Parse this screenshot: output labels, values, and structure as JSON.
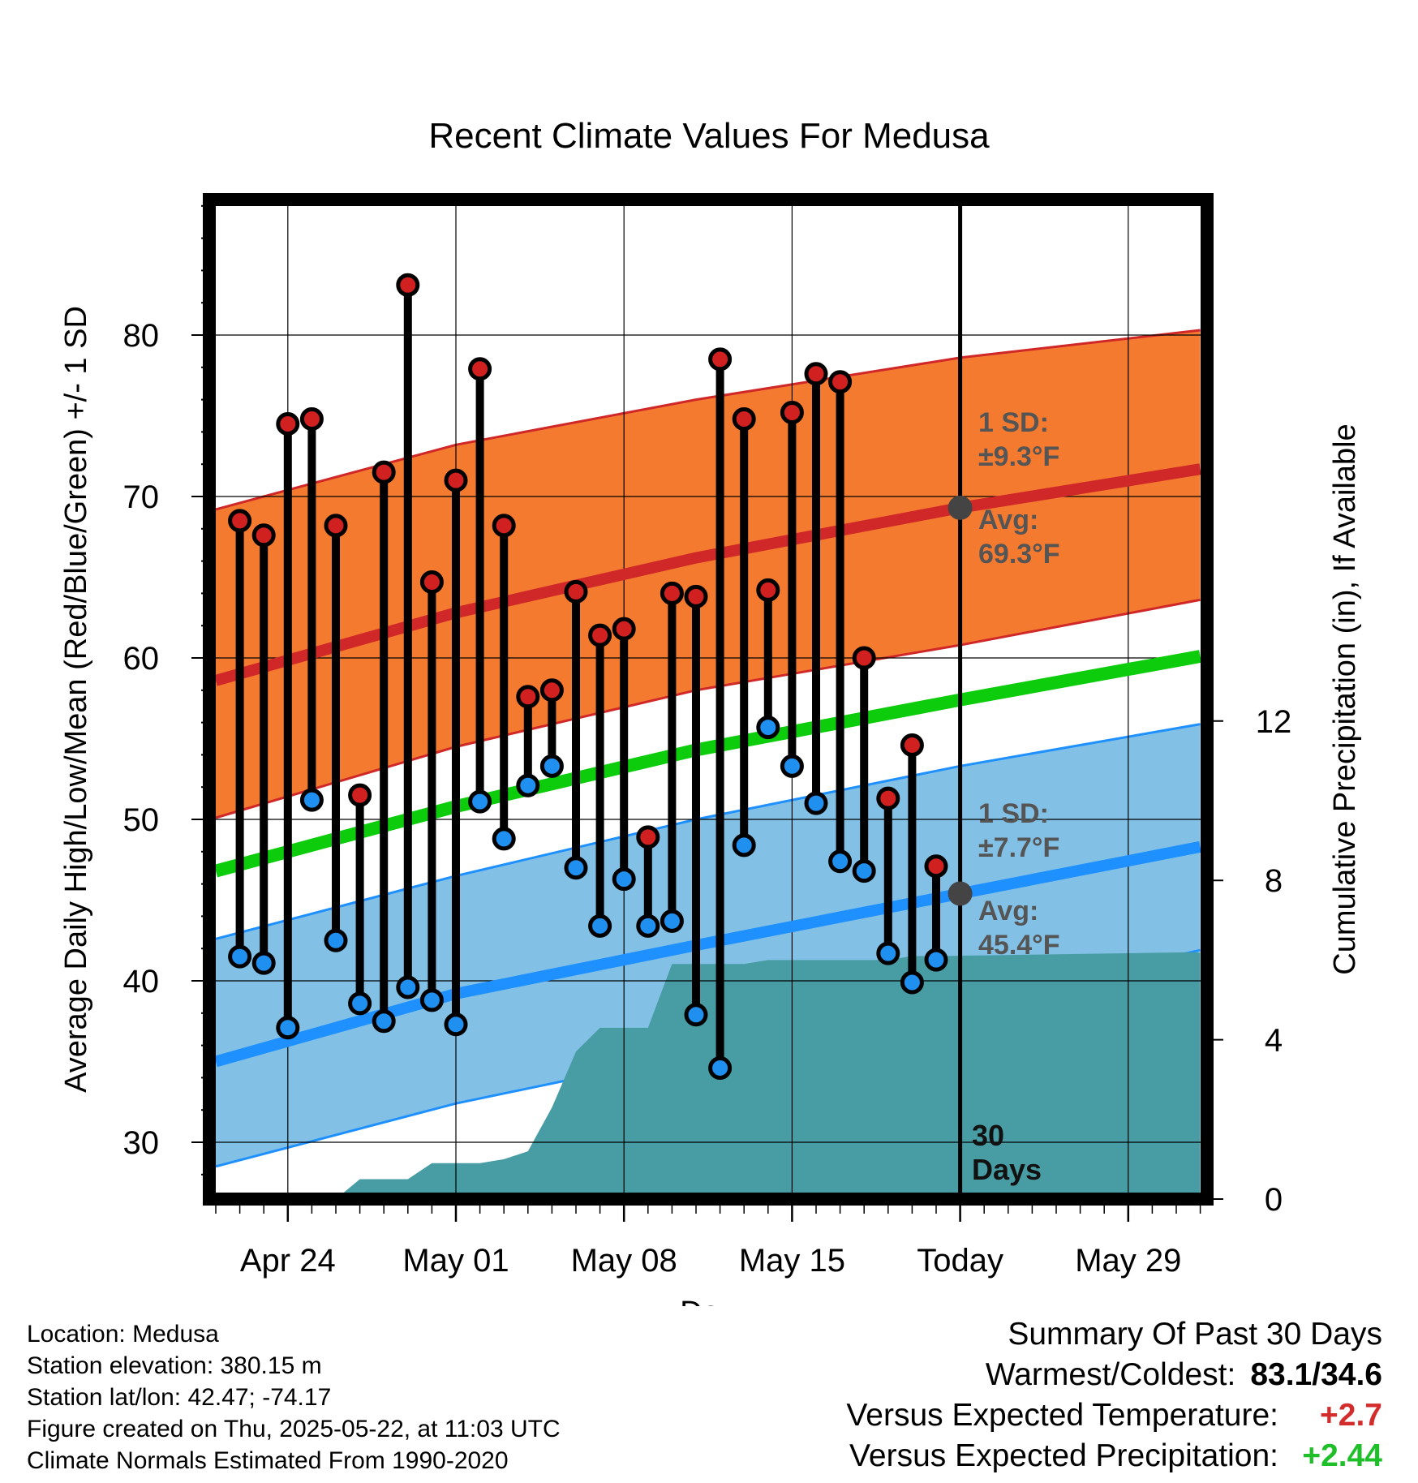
{
  "chart_data": {
    "type": "line",
    "title": "Recent Climate Values For Medusa",
    "xlabel": "Day",
    "ylabel": "Average Daily High/Low/Mean (Red/Blue/Green) +/- 1 SD",
    "y2label": "Cumulative Precipitation (in), If Available",
    "x_range": [
      "2025-04-21",
      "2025-06-01"
    ],
    "ylim": [
      27,
      89
    ],
    "y2lim": [
      0,
      24
    ],
    "x_ticks": [
      {
        "date": "2025-04-24",
        "label": "Apr 24"
      },
      {
        "date": "2025-05-01",
        "label": "May 01"
      },
      {
        "date": "2025-05-08",
        "label": "May 08"
      },
      {
        "date": "2025-05-15",
        "label": "May 15"
      },
      {
        "date": "2025-05-22",
        "label": "Today"
      },
      {
        "date": "2025-05-29",
        "label": "May 29"
      }
    ],
    "y_ticks": [
      30,
      40,
      50,
      60,
      70,
      80
    ],
    "y2_ticks": [
      0,
      4,
      8,
      12
    ],
    "today": "2025-05-22",
    "today_label_1": "30",
    "today_label_2": "Days",
    "daily": [
      {
        "date": "2025-04-22",
        "high": 68.5,
        "low": 41.5
      },
      {
        "date": "2025-04-23",
        "high": 67.6,
        "low": 41.1
      },
      {
        "date": "2025-04-24",
        "high": 74.5,
        "low": 37.1
      },
      {
        "date": "2025-04-25",
        "high": 74.8,
        "low": 51.2
      },
      {
        "date": "2025-04-26",
        "high": 68.2,
        "low": 42.5
      },
      {
        "date": "2025-04-27",
        "high": 51.5,
        "low": 38.6
      },
      {
        "date": "2025-04-28",
        "high": 71.5,
        "low": 37.5
      },
      {
        "date": "2025-04-29",
        "high": 83.1,
        "low": 39.6
      },
      {
        "date": "2025-04-30",
        "high": 64.7,
        "low": 38.8
      },
      {
        "date": "2025-05-01",
        "high": 71.0,
        "low": 37.3
      },
      {
        "date": "2025-05-02",
        "high": 77.9,
        "low": 51.1
      },
      {
        "date": "2025-05-03",
        "high": 68.2,
        "low": 48.8
      },
      {
        "date": "2025-05-04",
        "high": 57.6,
        "low": 52.1
      },
      {
        "date": "2025-05-05",
        "high": 58.0,
        "low": 53.3
      },
      {
        "date": "2025-05-06",
        "high": 64.1,
        "low": 47.0
      },
      {
        "date": "2025-05-07",
        "high": 61.4,
        "low": 43.4
      },
      {
        "date": "2025-05-08",
        "high": 61.8,
        "low": 46.3
      },
      {
        "date": "2025-05-09",
        "high": 48.9,
        "low": 43.4
      },
      {
        "date": "2025-05-10",
        "high": 64.0,
        "low": 43.7
      },
      {
        "date": "2025-05-11",
        "high": 63.8,
        "low": 37.9
      },
      {
        "date": "2025-05-12",
        "high": 78.5,
        "low": 34.6
      },
      {
        "date": "2025-05-13",
        "high": 74.8,
        "low": 48.4
      },
      {
        "date": "2025-05-14",
        "high": 64.2,
        "low": 55.7
      },
      {
        "date": "2025-05-15",
        "high": 75.2,
        "low": 53.3
      },
      {
        "date": "2025-05-16",
        "high": 77.6,
        "low": 51.0
      },
      {
        "date": "2025-05-17",
        "high": 77.1,
        "low": 47.4
      },
      {
        "date": "2025-05-18",
        "high": 60.0,
        "low": 46.8
      },
      {
        "date": "2025-05-19",
        "high": 51.3,
        "low": 41.7
      },
      {
        "date": "2025-05-20",
        "high": 54.6,
        "low": 39.9
      },
      {
        "date": "2025-05-21",
        "high": 47.1,
        "low": 41.3
      }
    ],
    "normal_high": {
      "dates": [
        "2025-04-21",
        "2025-05-01",
        "2025-05-11",
        "2025-05-22",
        "2025-06-01"
      ],
      "avg": [
        58.6,
        62.8,
        66.2,
        69.3,
        71.7
      ],
      "upper": [
        69.2,
        73.2,
        76.0,
        78.6,
        80.3
      ],
      "lower": [
        50.1,
        54.5,
        58.0,
        60.8,
        63.6
      ]
    },
    "normal_mean": {
      "dates": [
        "2025-04-21",
        "2025-05-01",
        "2025-05-11",
        "2025-05-22",
        "2025-06-01"
      ],
      "avg": [
        46.8,
        50.8,
        54.3,
        57.4,
        60.1
      ]
    },
    "normal_low": {
      "dates": [
        "2025-04-21",
        "2025-05-01",
        "2025-05-11",
        "2025-05-22",
        "2025-06-01"
      ],
      "avg": [
        35.0,
        39.2,
        42.2,
        45.4,
        48.3
      ],
      "upper": [
        42.6,
        46.5,
        50.0,
        53.3,
        55.9
      ],
      "lower": [
        28.5,
        32.4,
        35.5,
        38.6,
        41.9
      ]
    },
    "precip_cumulative": {
      "dates": [
        "2025-04-21",
        "2025-04-26",
        "2025-04-27",
        "2025-04-28",
        "2025-04-29",
        "2025-04-30",
        "2025-05-01",
        "2025-05-02",
        "2025-05-03",
        "2025-05-04",
        "2025-05-05",
        "2025-05-06",
        "2025-05-07",
        "2025-05-08",
        "2025-05-09",
        "2025-05-10",
        "2025-05-13",
        "2025-05-14",
        "2025-05-18",
        "2025-05-19",
        "2025-05-20",
        "2025-05-21",
        "2025-06-01"
      ],
      "values": [
        0,
        0,
        0.5,
        0.5,
        0.5,
        0.9,
        0.9,
        0.9,
        1.0,
        1.2,
        2.3,
        3.7,
        4.3,
        4.3,
        4.3,
        5.9,
        5.9,
        6.0,
        6.0,
        6.0,
        6.1,
        6.1,
        6.2
      ]
    },
    "annotations": {
      "high_sd_label": "1 SD:",
      "high_sd_value": "±9.3°F",
      "high_avg_label": "Avg:",
      "high_avg_value": "69.3°F",
      "low_sd_label": "1 SD:",
      "low_sd_value": "±7.7°F",
      "low_avg_label": "Avg:",
      "low_avg_value": "45.4°F"
    },
    "colors": {
      "high_band": "#f47a30",
      "high_line": "#d02828",
      "mean_line": "#0ccc0c",
      "low_band": "#82c0e6",
      "low_line": "#1e90ff",
      "precip": "#489ca4",
      "high_dot": "#d02020",
      "low_dot": "#2090f0",
      "today_dot": "#444444"
    }
  },
  "info": {
    "location": "Location: Medusa",
    "elevation": "Station elevation: 380.15 m",
    "latlon": "Station lat/lon: 42.47; -74.17",
    "created": "Figure created on Thu, 2025-05-22, at 11:03 UTC",
    "normals": "Climate Normals Estimated From 1990-2020"
  },
  "summary": {
    "heading": "Summary Of Past 30 Days",
    "warm_cold_label": "Warmest/Coldest:",
    "warm_cold_value": "83.1/34.6",
    "temp_label": "Versus Expected Temperature:",
    "temp_value": "+2.7",
    "precip_label": "Versus Expected Precipitation:",
    "precip_value": "+2.44"
  }
}
